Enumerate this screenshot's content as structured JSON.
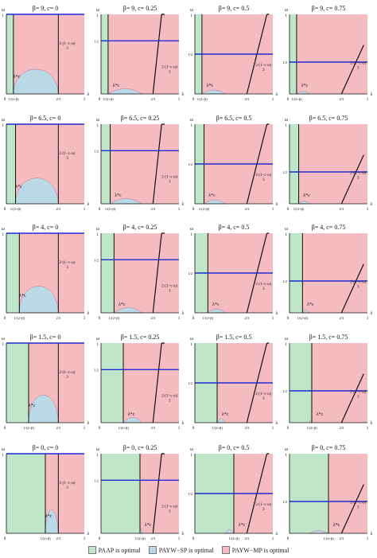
{
  "chart_data": {
    "type": "area",
    "title": "",
    "xlabel": "λ",
    "ylabel": "ω",
    "xlim": [
      0,
      1
    ],
    "ylim": [
      0,
      1
    ],
    "betas": [
      9,
      6.5,
      4,
      1.5,
      0
    ],
    "cs": [
      0,
      0.25,
      0.5,
      0.75
    ],
    "panel_title_template": "β= {beta}, c= {c}",
    "annotations": {
      "lambda_star": "λ*c",
      "threshold_num": "2·(1−c·ω)",
      "threshold_den": "3",
      "tick_one_over_2_beta": "1/(2+β)",
      "tick_two_thirds": "2/3",
      "tick_half": "1/2",
      "tick_zero": "0",
      "tick_one": "1"
    },
    "legend": [
      {
        "label": "PAAP is optimal",
        "color": "#bfe6c9"
      },
      {
        "label": "PAYW−SP is optimal",
        "color": "#b9d9e6"
      },
      {
        "label": "PAYW−MP is optimal",
        "color": "#f4bcc1"
      }
    ],
    "colors": {
      "paap": "#bfe6c9",
      "payw_sp": "#b9d9e6",
      "payw_mp": "#f4bcc1",
      "horizontal_line": "#1f2bd6",
      "boundary": "#111111"
    }
  }
}
